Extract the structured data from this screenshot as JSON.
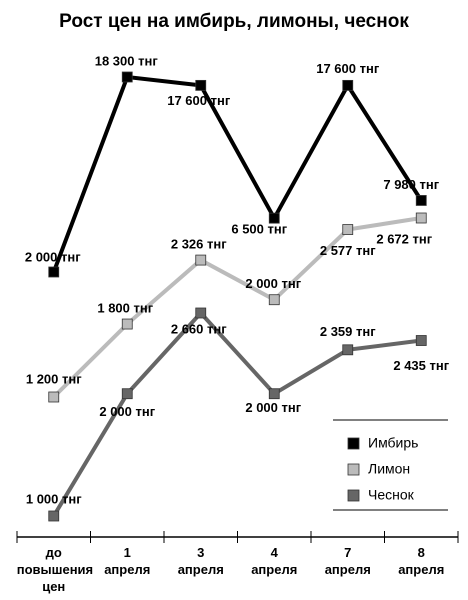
{
  "chart_data": {
    "type": "line",
    "title": "Рост цен на имбирь, лимоны, чеснок",
    "categories": [
      "до повышения цен",
      "1 апреля",
      "3 апреля",
      "4 апреля",
      "7 апреля",
      "8 апреля"
    ],
    "legend": "right",
    "series": [
      {
        "name": "Имбирь",
        "color": "#000000",
        "values": [
          2000,
          18300,
          17600,
          6500,
          17600,
          7980
        ],
        "value_labels": [
          "2 000 тнг",
          "18 300 тнг",
          "17 600 тнг",
          "6 500 тнг",
          "17 600 тнг",
          "7 980 тнг"
        ]
      },
      {
        "name": "Лимон",
        "color": "#bbbbbb",
        "values": [
          1200,
          1800,
          2326,
          2000,
          2577,
          2672
        ],
        "value_labels": [
          "1 200 тнг",
          "1 800 тнг",
          "2 326 тнг",
          "2 000 тнг",
          "2 577 тнг",
          "2 672 тнг"
        ]
      },
      {
        "name": "Чеснок",
        "color": "#666666",
        "values": [
          1000,
          2000,
          2660,
          2000,
          2359,
          2435
        ],
        "value_labels": [
          "1 000 тнг",
          "2 000 тнг",
          "2 660 тнг",
          "2 000 тнг",
          "2 359 тнг",
          "2 435 тнг"
        ]
      }
    ]
  }
}
